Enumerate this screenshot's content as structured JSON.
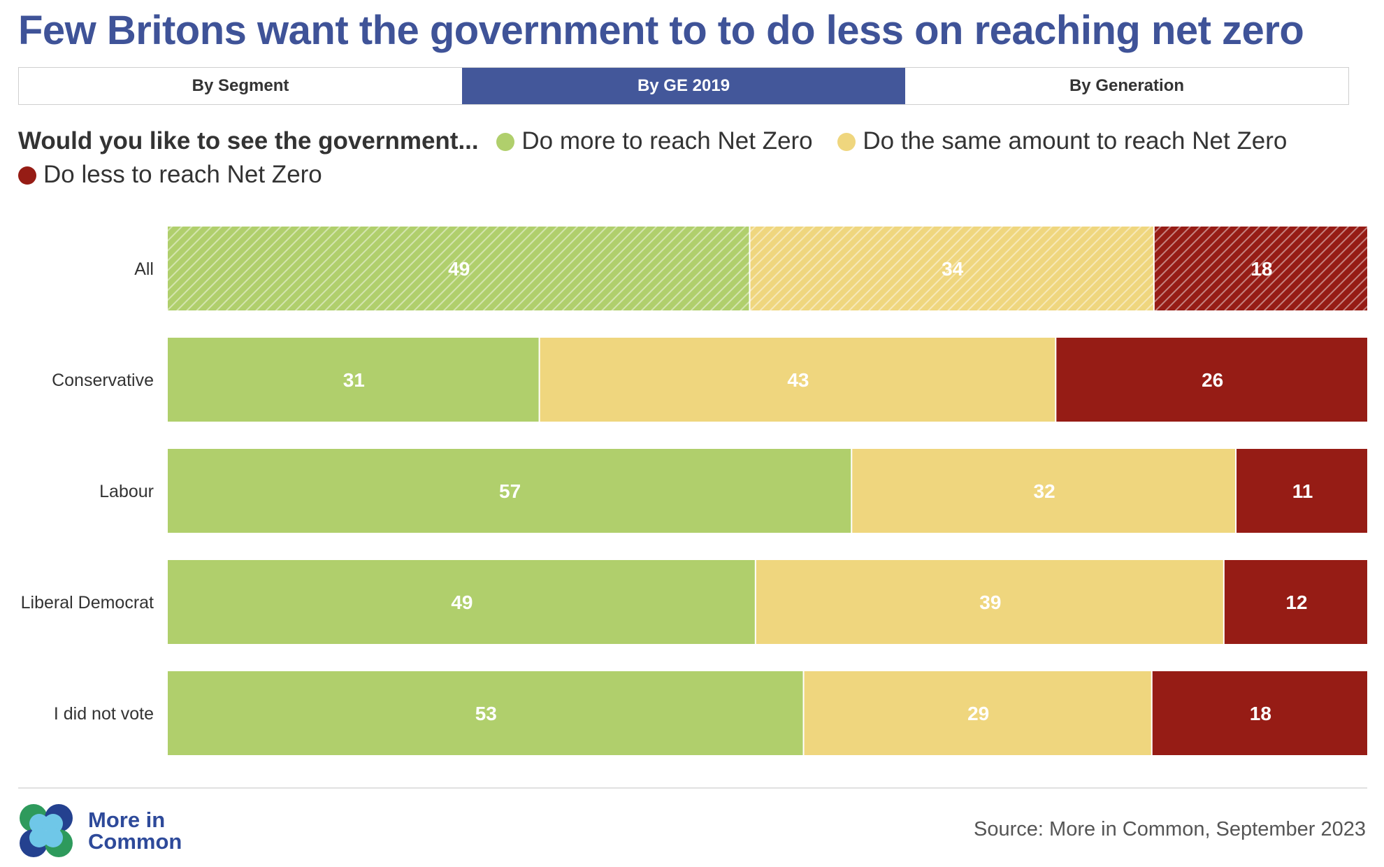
{
  "title": "Few Britons want the government to to do less on reaching net zero",
  "tabs": [
    {
      "label": "By Segment",
      "active": false
    },
    {
      "label": "By GE 2019",
      "active": true
    },
    {
      "label": "By Generation",
      "active": false
    }
  ],
  "legend": {
    "question": "Would you like to see the government...",
    "items": [
      {
        "label": "Do more to reach Net Zero",
        "color": "#b0cf6c"
      },
      {
        "label": "Do the same amount to reach Net Zero",
        "color": "#efd67e"
      },
      {
        "label": "Do less to reach Net Zero",
        "color": "#961c15"
      }
    ]
  },
  "chart_data": {
    "type": "bar",
    "orientation": "horizontal",
    "stacked": true,
    "categories": [
      "All",
      "Conservative",
      "Labour",
      "Liberal Democrat",
      "I did not vote"
    ],
    "series": [
      {
        "name": "Do more to reach Net Zero",
        "color": "#b0cf6c",
        "values": [
          49,
          31,
          57,
          49,
          53
        ]
      },
      {
        "name": "Do the same amount to reach Net Zero",
        "color": "#efd67e",
        "values": [
          34,
          43,
          32,
          39,
          29
        ]
      },
      {
        "name": "Do less to reach Net Zero",
        "color": "#961c15",
        "values": [
          18,
          26,
          11,
          12,
          18
        ]
      }
    ],
    "highlighted_category": "All",
    "highlight_style": "hatched",
    "data_labels": true,
    "grid": false,
    "legend_position": "top-left"
  },
  "footer": {
    "logo_line1": "More in",
    "logo_line2": "Common",
    "source": "Source: More in Common, September 2023"
  }
}
